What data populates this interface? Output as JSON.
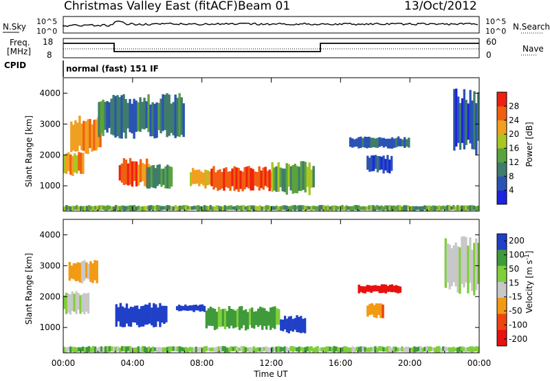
{
  "header": {
    "title": "Christmas Valley East (fitACF)",
    "beam": "Beam 01",
    "date": "13/Oct/2012"
  },
  "sky_panel": {
    "left_label": "N.Sky",
    "right_label": "N.Search",
    "left_ticks": [
      "10^5",
      "10^0"
    ],
    "right_ticks": [
      "10^5",
      "10^0"
    ]
  },
  "freq_panel": {
    "left_label_line1": "Freq.",
    "left_label_line2": "[MHz]",
    "right_label": "Nave",
    "left_ticks": [
      "18",
      "8"
    ],
    "right_ticks": [
      "60",
      "0"
    ]
  },
  "cpid": {
    "label": "CPID",
    "mode": "normal (fast) 151 IF"
  },
  "colors": {
    "power": [
      "#1c24e0",
      "#2a53b5",
      "#3f7d6a",
      "#5aa33e",
      "#aac622",
      "#f0a020",
      "#f06010",
      "#f02010"
    ],
    "velocity": [
      "#e81010",
      "#f04510",
      "#f39a15",
      "#c8c8c8",
      "#7fcf3a",
      "#3f9a3a",
      "#2040c8"
    ]
  },
  "chart_data": [
    {
      "type": "heatmap",
      "name": "power",
      "ylabel": "Slant Range [km]",
      "xlabel": "Time UT",
      "xlim": [
        0,
        24
      ],
      "ylim": [
        180,
        4500
      ],
      "x_ticks": [
        "00:00",
        "04:00",
        "08:00",
        "12:00",
        "16:00",
        "20:00",
        "00:00"
      ],
      "y_ticks": [
        1000,
        2000,
        3000,
        4000
      ],
      "colorbar": {
        "label": "Power [dB]",
        "ticks": [
          4,
          8,
          12,
          16,
          20,
          24,
          28
        ],
        "range": [
          0,
          32
        ]
      },
      "regions": [
        {
          "t0": 0.0,
          "t1": 1.2,
          "r0": 1300,
          "r1": 2100,
          "level": 22
        },
        {
          "t0": 0.4,
          "t1": 2.2,
          "r0": 2000,
          "r1": 3300,
          "level": 24
        },
        {
          "t0": 3.2,
          "t1": 5.0,
          "r0": 950,
          "r1": 1900,
          "level": 26
        },
        {
          "t0": 4.8,
          "t1": 6.3,
          "r0": 900,
          "r1": 1700,
          "level": 12
        },
        {
          "t0": 7.3,
          "t1": 8.5,
          "r0": 900,
          "r1": 1600,
          "level": 20
        },
        {
          "t0": 8.5,
          "t1": 12.2,
          "r0": 800,
          "r1": 1650,
          "level": 28
        },
        {
          "t0": 12.0,
          "t1": 14.5,
          "r0": 700,
          "r1": 1800,
          "level": 14
        },
        {
          "t0": 16.5,
          "t1": 20.0,
          "r0": 2200,
          "r1": 2600,
          "level": 8
        },
        {
          "t0": 17.5,
          "t1": 19.0,
          "r0": 1400,
          "r1": 2000,
          "level": 6
        },
        {
          "t0": 22.5,
          "t1": 24.0,
          "r0": 2000,
          "r1": 4200,
          "level": 6
        },
        {
          "t0": 2.0,
          "t1": 7.0,
          "r0": 2500,
          "r1": 4000,
          "level": 10
        },
        {
          "t0": 0.0,
          "t1": 24.0,
          "r0": 180,
          "r1": 380,
          "level": 14
        }
      ]
    },
    {
      "type": "heatmap",
      "name": "velocity",
      "ylabel": "Slant Range [km]",
      "xlabel": "Time UT",
      "xlim": [
        0,
        24
      ],
      "ylim": [
        180,
        4500
      ],
      "x_ticks": [
        "00:00",
        "04:00",
        "08:00",
        "12:00",
        "16:00",
        "20:00",
        "00:00"
      ],
      "y_ticks": [
        1000,
        2000,
        3000,
        4000
      ],
      "colorbar": {
        "label": "Velocity [m s^-1]",
        "ticks": [
          200,
          100,
          50,
          15,
          -15,
          -50,
          -100,
          -200
        ]
      },
      "regions": [
        {
          "t0": 0.0,
          "t1": 1.5,
          "r0": 1400,
          "r1": 2200,
          "value": 0
        },
        {
          "t0": 0.3,
          "t1": 2.0,
          "r0": 2400,
          "r1": 3200,
          "value": -40
        },
        {
          "t0": 3.0,
          "t1": 6.0,
          "r0": 1000,
          "r1": 1800,
          "value": 160
        },
        {
          "t0": 6.5,
          "t1": 8.2,
          "r0": 1500,
          "r1": 1750,
          "value": 180
        },
        {
          "t0": 8.2,
          "t1": 12.5,
          "r0": 900,
          "r1": 1700,
          "value": 60
        },
        {
          "t0": 12.5,
          "t1": 14.0,
          "r0": 800,
          "r1": 1400,
          "value": 140
        },
        {
          "t0": 17.0,
          "t1": 19.5,
          "r0": 2100,
          "r1": 2400,
          "value": -200
        },
        {
          "t0": 17.5,
          "t1": 18.5,
          "r0": 1300,
          "r1": 1800,
          "value": -60
        },
        {
          "t0": 0.0,
          "t1": 24.0,
          "r0": 180,
          "r1": 400,
          "value": 30
        },
        {
          "t0": 22.0,
          "t1": 24.0,
          "r0": 2000,
          "r1": 4000,
          "value": 0
        }
      ]
    }
  ]
}
